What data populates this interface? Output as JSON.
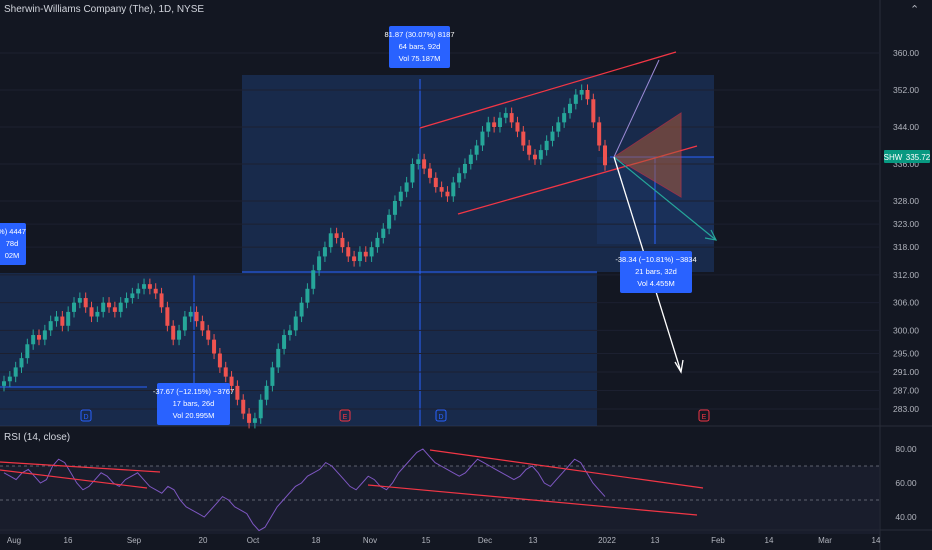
{
  "header": {
    "title": "Sherwin-Williams Company (The), 1D, NYSE"
  },
  "controls": {
    "collapse": "⌃"
  },
  "rsi": {
    "label": "RSI (14, close)",
    "levels": [
      "80.00",
      "60.00",
      "40.00"
    ]
  },
  "symbol_tag": {
    "name": "SHW",
    "value": "335.72"
  },
  "chart_data": {
    "type": "candlestick",
    "ticker": "SHW",
    "interval": "1D",
    "exchange": "NYSE",
    "last_price": 335.72,
    "y_ticks": [
      "360.00",
      "352.00",
      "344.00",
      "336.00",
      "328.00",
      "323.00",
      "318.00",
      "312.00",
      "306.00",
      "300.00",
      "295.00",
      "291.00",
      "287.00",
      "283.00"
    ],
    "x_ticks": [
      "Aug",
      "16",
      "Sep",
      "20",
      "Oct",
      "18",
      "Nov",
      "15",
      "Dec",
      "13",
      "2022",
      "13",
      "Feb",
      "14",
      "Mar",
      "14"
    ],
    "closes": [
      289,
      290,
      292,
      294,
      297,
      299,
      298,
      300,
      302,
      303,
      301,
      304,
      306,
      307,
      305,
      303,
      304,
      306,
      305,
      304,
      306,
      307,
      308,
      309,
      310,
      309,
      308,
      305,
      301,
      298,
      300,
      303,
      304,
      302,
      300,
      298,
      295,
      292,
      290,
      288,
      285,
      282,
      280,
      281,
      285,
      288,
      292,
      296,
      299,
      300,
      303,
      306,
      309,
      313,
      316,
      318,
      321,
      320,
      318,
      316,
      315,
      317,
      316,
      318,
      320,
      322,
      325,
      328,
      330,
      332,
      336,
      337,
      335,
      333,
      331,
      330,
      329,
      332,
      334,
      336,
      338,
      340,
      343,
      345,
      344,
      346,
      347,
      345,
      343,
      340,
      338,
      337,
      339,
      341,
      343,
      345,
      347,
      349,
      351,
      352,
      350,
      345,
      340,
      335.72
    ],
    "rsi_values": [
      66,
      64,
      62,
      66,
      68,
      64,
      60,
      62,
      70,
      74,
      72,
      66,
      60,
      56,
      58,
      62,
      66,
      64,
      60,
      58,
      62,
      64,
      66,
      62,
      58,
      56,
      54,
      58,
      56,
      50,
      46,
      44,
      42,
      40,
      44,
      48,
      52,
      50,
      46,
      44,
      42,
      36,
      32,
      34,
      40,
      46,
      50,
      54,
      58,
      60,
      64,
      66,
      68,
      72,
      70,
      66,
      62,
      58,
      56,
      60,
      64,
      62,
      58,
      56,
      60,
      66,
      70,
      74,
      78,
      80,
      76,
      72,
      70,
      68,
      66,
      64,
      66,
      70,
      74,
      72,
      70,
      68,
      66,
      64,
      62,
      64,
      68,
      70,
      66,
      60,
      58,
      62,
      66,
      70,
      74,
      72,
      66,
      60,
      56,
      52
    ],
    "annotations": [
      {
        "text": [
          "81.87 (30.07%) 8187",
          "64 bars, 92d",
          "Vol 75.187M"
        ]
      },
      {
        "text": [
          "-37.67 (−12.15%) −3767",
          "17 bars, 26d",
          "Vol 20.995M"
        ]
      },
      {
        "text": [
          "-38.34 (−10.81%) −3834",
          "21 bars, 32d",
          "Vol 4.455M"
        ]
      },
      {
        "text": [
          "%) 4447",
          "78d",
          "02M"
        ]
      }
    ],
    "event_markers": [
      "D",
      "E",
      "D",
      "E"
    ]
  }
}
